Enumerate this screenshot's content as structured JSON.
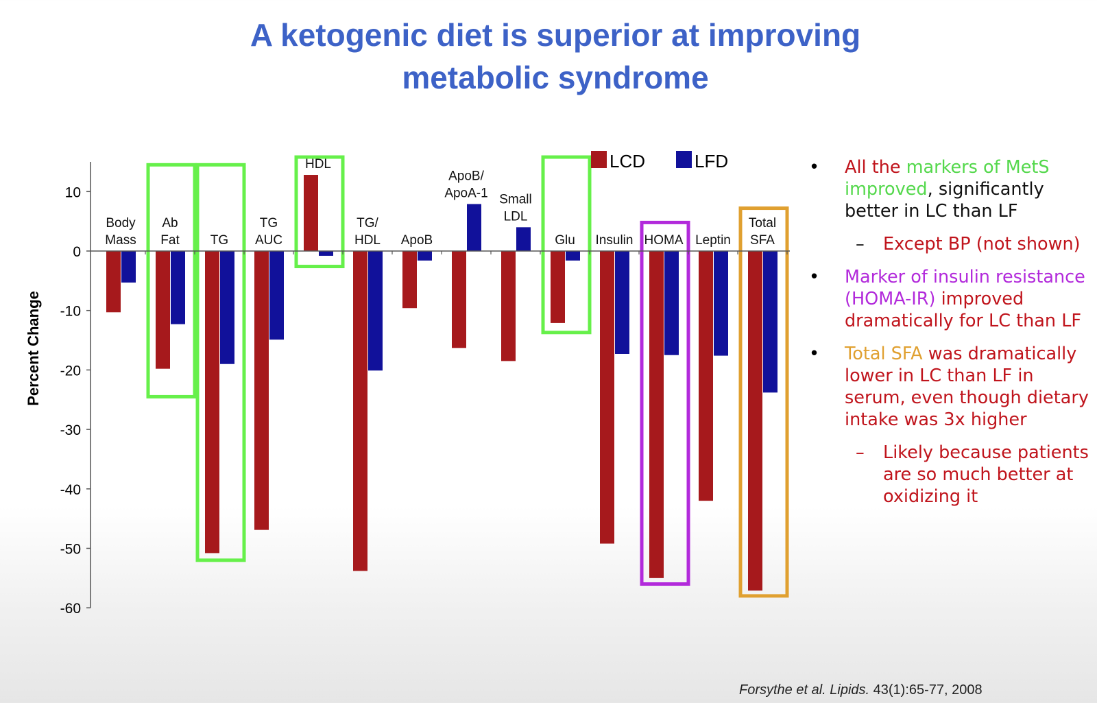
{
  "title_lines": [
    "A ketogenic diet is superior at improving",
    "metabolic syndrome"
  ],
  "colors": {
    "title": "#3d62c7",
    "lcd": "#a6191c",
    "lfd": "#11119a",
    "green_box": "#66f04a",
    "magenta_box": "#b22adb",
    "orange_box": "#e0a030",
    "bullet_red": "#c0141c"
  },
  "chart_data": {
    "type": "bar",
    "categories": [
      "Body Mass",
      "Ab Fat",
      "TG",
      "TG AUC",
      "HDL",
      "TG/ HDL",
      "ApoB",
      "ApoB/ ApoA-1",
      "Small LDL",
      "Glu",
      "Insulin",
      "HOMA",
      "Leptin",
      "Total SFA"
    ],
    "category_label_lines": [
      [
        "Body",
        "Mass"
      ],
      [
        "Ab",
        "Fat"
      ],
      [
        "TG"
      ],
      [
        "TG",
        "AUC"
      ],
      [
        "HDL"
      ],
      [
        "TG/",
        "HDL"
      ],
      [
        "ApoB"
      ],
      [
        "ApoB/",
        "ApoA-1"
      ],
      [
        "Small",
        "LDL"
      ],
      [
        "Glu"
      ],
      [
        "Insulin"
      ],
      [
        "HOMA"
      ],
      [
        "Leptin"
      ],
      [
        "Total",
        "SFA"
      ]
    ],
    "series": [
      {
        "name": "LCD",
        "color": "#a6191c",
        "values": [
          -10.3,
          -19.8,
          -50.8,
          -46.9,
          12.8,
          -53.8,
          -9.6,
          -16.3,
          -18.5,
          -12.1,
          -49.2,
          -55.0,
          -42.0,
          -57.1
        ]
      },
      {
        "name": "LFD",
        "color": "#11119a",
        "values": [
          -5.3,
          -12.3,
          -19.0,
          -14.9,
          -0.8,
          -20.1,
          -1.6,
          7.9,
          4.0,
          -1.6,
          -17.3,
          -17.5,
          -17.6,
          -23.8
        ]
      }
    ],
    "ylabel": "Percent Change",
    "yticks": [
      10,
      0,
      -10,
      -20,
      -30,
      -40,
      -50,
      -60
    ],
    "ylim": [
      -60,
      15
    ],
    "grid": false,
    "legend": [
      "LCD",
      "LFD"
    ],
    "legend_position": "top-right",
    "highlight_boxes": [
      {
        "category": "Ab Fat",
        "color": "green",
        "from": 14.5,
        "to": -24.5
      },
      {
        "category": "TG",
        "color": "green",
        "from": 14.5,
        "to": -52.0
      },
      {
        "category": "HDL",
        "color": "green",
        "from": 15.8,
        "to": -2.6
      },
      {
        "category": "Glu",
        "color": "green",
        "from": 15.8,
        "to": -13.7
      },
      {
        "category": "HOMA",
        "color": "magenta",
        "from": 4.8,
        "to": -56.0
      },
      {
        "category": "Total SFA",
        "color": "orange",
        "from": 7.2,
        "to": -58.0
      }
    ]
  },
  "bullets": {
    "b1": {
      "p1": "All the ",
      "p2": "markers of MetS improved",
      "p3": ", significantly better in LC than LF"
    },
    "b1_sub": "Except BP (not shown)",
    "b2": {
      "p1": "Marker of insulin resistance (HOMA-IR)",
      "p2": " improved dramatically for LC than LF"
    },
    "b3": {
      "p1": "Total SFA",
      "p2": " was dramatically lower in LC than LF in serum, even though dietary intake was 3x higher"
    },
    "b3_sub": "Likely because patients are so much better at oxidizing it"
  },
  "bullet_marker": "•",
  "dash_marker": "–",
  "citation": {
    "authors": "Forsythe et al. Lipids.",
    "rest": " 43(1):65-77, 2008"
  }
}
